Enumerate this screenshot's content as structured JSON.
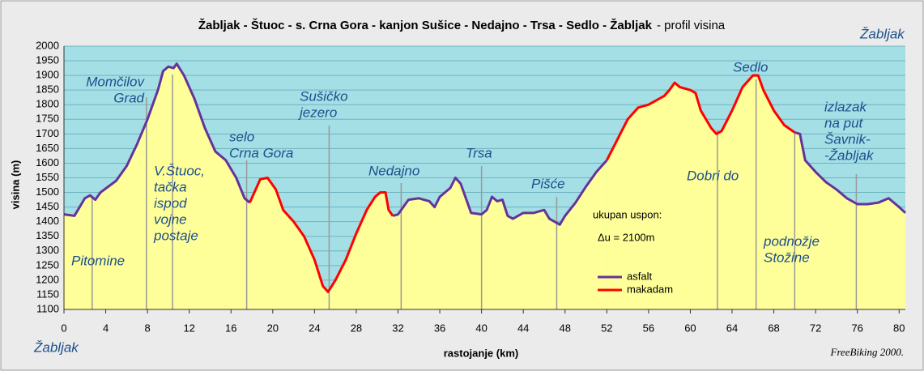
{
  "chart_data": {
    "type": "area-line",
    "title": "Žabljak - Štuoc - s. Crna Gora - kanjon Sušice - Nedajno - Trsa - Sedlo - Žabljak",
    "subtitle": "- profil visina",
    "x_label": "rastojanje (km)",
    "y_label": "visina (m)",
    "start_place": "Žabljak",
    "end_place": "Žabljak",
    "credit": "FreeBiking 2000.",
    "note_lines": [
      "ukupan uspon:",
      "Δu = 2100m"
    ],
    "xlim": [
      0,
      80.6
    ],
    "xticks": [
      0,
      4,
      8,
      12,
      16,
      20,
      24,
      28,
      32,
      36,
      40,
      44,
      48,
      52,
      56,
      60,
      64,
      68,
      72,
      76,
      80
    ],
    "ylim": [
      1100,
      2000
    ],
    "yticks": [
      1100,
      1150,
      1200,
      1250,
      1300,
      1350,
      1400,
      1450,
      1500,
      1550,
      1600,
      1650,
      1700,
      1750,
      1800,
      1850,
      1900,
      1950,
      2000
    ],
    "grid": true,
    "fill_color": "#ffff99",
    "background_color": "#a4dfe6",
    "x": [
      0,
      1,
      2,
      2.5,
      3,
      3.5,
      5,
      6,
      7,
      8,
      9,
      9.5,
      10,
      10.5,
      10.8,
      11.5,
      12.5,
      13.5,
      14.5,
      15.5,
      16.5,
      17.3,
      17.8,
      18.8,
      19.5,
      20.3,
      21,
      22,
      23,
      24,
      24.8,
      25.3,
      26,
      27,
      28,
      29,
      29.8,
      30.3,
      30.8,
      31.1,
      31.5,
      32,
      33,
      34,
      35,
      35.5,
      36,
      37,
      37.5,
      38,
      38.5,
      39,
      40,
      40.5,
      41,
      41.5,
      42,
      42.5,
      43,
      44,
      45,
      46,
      46.5,
      47,
      47.5,
      48,
      49,
      50,
      51,
      52,
      53,
      54,
      55,
      56,
      57,
      57.5,
      58,
      58.5,
      59,
      60,
      60.5,
      61,
      62,
      62.5,
      63,
      64,
      65,
      66,
      66.5,
      67,
      68,
      69,
      70,
      70.5,
      71,
      72,
      73,
      74,
      75,
      76,
      77,
      78,
      79,
      80,
      80.6
    ],
    "series": [
      {
        "name": "asfalt",
        "color": "#663399",
        "values": [
          1425,
          1420,
          1480,
          1490,
          1475,
          1500,
          1540,
          1590,
          1665,
          1750,
          1850,
          1915,
          1930,
          1925,
          1940,
          1900,
          1820,
          1720,
          1640,
          1610,
          1550,
          1480,
          1465,
          null,
          null,
          null,
          null,
          null,
          null,
          null,
          null,
          null,
          null,
          null,
          null,
          null,
          null,
          null,
          null,
          null,
          1420,
          1425,
          1475,
          1480,
          1470,
          1450,
          1485,
          1515,
          1550,
          1530,
          1480,
          1430,
          1425,
          1440,
          1485,
          1470,
          1475,
          1420,
          1410,
          1430,
          1430,
          1440,
          1410,
          1400,
          1390,
          1420,
          1465,
          1520,
          1570,
          1610,
          null,
          null,
          null,
          null,
          null,
          null,
          null,
          null,
          null,
          null,
          null,
          null,
          null,
          null,
          null,
          null,
          null,
          null,
          null,
          null,
          null,
          null,
          1705,
          1700,
          1610,
          1570,
          1535,
          1510,
          1480,
          1460,
          1460,
          1465,
          1480,
          1450,
          1430
        ]
      },
      {
        "name": "makadam",
        "color": "#ff0000",
        "values": [
          null,
          null,
          null,
          null,
          null,
          null,
          null,
          null,
          null,
          null,
          null,
          null,
          null,
          null,
          null,
          null,
          null,
          null,
          null,
          null,
          null,
          null,
          1465,
          1545,
          1550,
          1510,
          1440,
          1400,
          1350,
          1270,
          1180,
          1160,
          1200,
          1270,
          1360,
          1440,
          1485,
          1500,
          1500,
          1440,
          1420,
          null,
          null,
          null,
          null,
          null,
          null,
          null,
          null,
          null,
          null,
          null,
          null,
          null,
          null,
          null,
          null,
          null,
          null,
          null,
          null,
          null,
          null,
          null,
          null,
          null,
          null,
          null,
          null,
          1610,
          1680,
          1750,
          1790,
          1800,
          1820,
          1830,
          1850,
          1875,
          1860,
          1850,
          1840,
          1780,
          1720,
          1700,
          1710,
          1780,
          1860,
          1900,
          1900,
          1850,
          1780,
          1730,
          1705,
          null,
          null,
          null,
          null,
          null,
          null,
          null,
          null,
          null,
          null,
          null,
          null
        ]
      }
    ],
    "annotations": [
      {
        "lines": [
          "Pitomine"
        ],
        "x": 2.7
      },
      {
        "lines": [
          "Momčilov",
          "Grad"
        ],
        "x": 7.9
      },
      {
        "lines": [
          "V.Štuoc,",
          "tačka",
          "ispod",
          "vojne",
          "postaje"
        ],
        "x": 10.4
      },
      {
        "lines": [
          "selo",
          "Crna Gora"
        ],
        "x": 17.5
      },
      {
        "lines": [
          "Sušičko",
          "jezero"
        ],
        "x": 25.4
      },
      {
        "lines": [
          "Nedajno"
        ],
        "x": 32.3
      },
      {
        "lines": [
          "Trsa"
        ],
        "x": 40
      },
      {
        "lines": [
          "Pišće"
        ],
        "x": 47.2
      },
      {
        "lines": [
          "Dobri do"
        ],
        "x": 62.6
      },
      {
        "lines": [
          "Sedlo"
        ],
        "x": 66.3
      },
      {
        "lines": [
          "podnožje",
          "Stožine"
        ],
        "x": 70
      },
      {
        "lines": [
          "izlazak",
          "na put",
          "Šavnik-",
          "-Žabljak"
        ],
        "x": 75.9
      }
    ]
  }
}
